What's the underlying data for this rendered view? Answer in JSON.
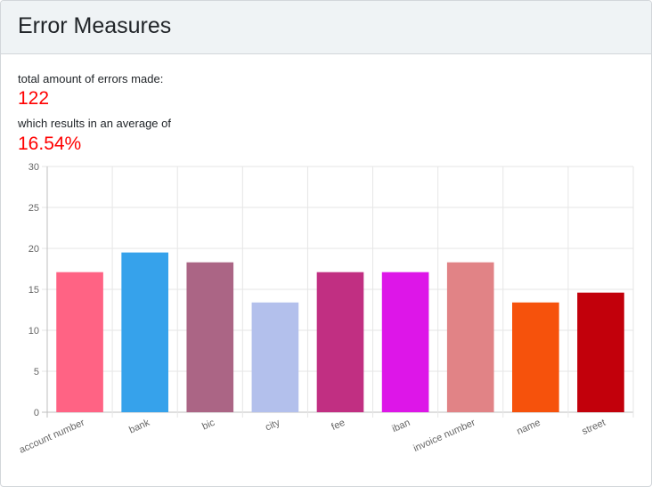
{
  "header": {
    "title": "Error Measures"
  },
  "stats": {
    "total_label": "total amount of errors made:",
    "total_value": "122",
    "average_label": "which results in an average of",
    "average_value": "16.54%"
  },
  "colors": {
    "stat_value": "#ff0000",
    "grid": "#e6e6e6",
    "axis": "#bfbfbf"
  },
  "chart_data": {
    "type": "bar",
    "title": "",
    "xlabel": "",
    "ylabel": "",
    "categories": [
      "account number",
      "bank",
      "bic",
      "city",
      "fee",
      "iban",
      "invoice number",
      "name",
      "street"
    ],
    "values": [
      17.1,
      19.5,
      18.3,
      13.4,
      17.1,
      17.1,
      18.3,
      13.4,
      14.6
    ],
    "colors": [
      "#ff6384",
      "#36a2eb",
      "#ab6585",
      "#b3c0ec",
      "#c12f82",
      "#dd16e8",
      "#e18386",
      "#f6520c",
      "#c2000b"
    ],
    "ylim": [
      0,
      30
    ],
    "yticks": [
      0,
      5,
      10,
      15,
      20,
      25,
      30
    ],
    "grid": true,
    "legend": "none"
  }
}
